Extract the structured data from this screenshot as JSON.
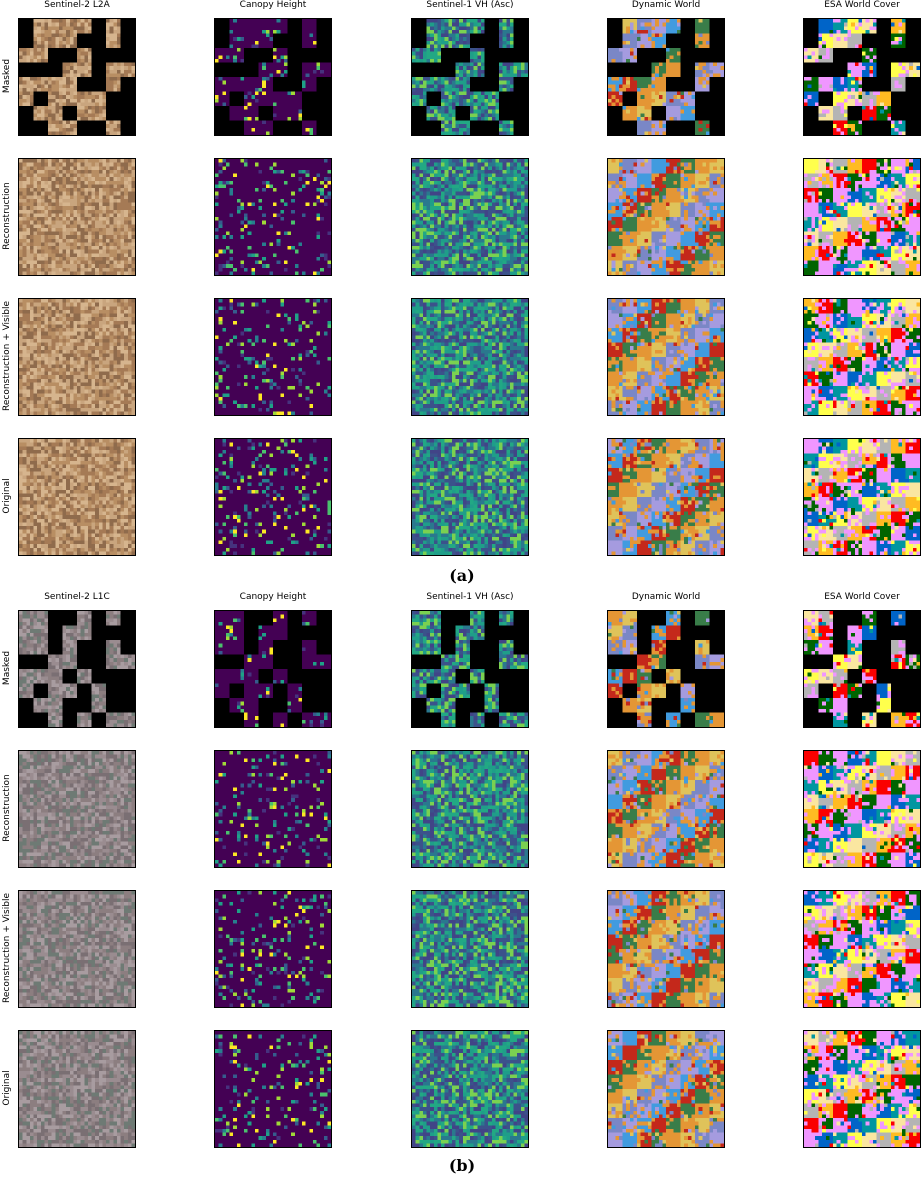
{
  "figure": {
    "panels": [
      {
        "id": "a",
        "caption": "(a)",
        "columns": [
          "Sentinel-2 L2A",
          "Canopy Height",
          "Sentinel-1 VH (Asc)",
          "Dynamic World",
          "ESA World Cover"
        ],
        "rows": [
          "Masked",
          "Reconstruction",
          "Reconstruction + Visible",
          "Original"
        ]
      },
      {
        "id": "b",
        "caption": "(b)",
        "columns": [
          "Sentinel-2 L1C",
          "Canopy Height",
          "Sentinel-1 VH (Asc)",
          "Dynamic World",
          "ESA World Cover"
        ],
        "rows": [
          "Masked",
          "Reconstruction",
          "Reconstruction + Visible",
          "Original"
        ]
      }
    ],
    "palettes": {
      "s2a": [
        "#c9a57e",
        "#b88e63",
        "#a57a55",
        "#8f6b4c",
        "#d6b58e"
      ],
      "s2b": [
        "#8c7e80",
        "#9a8c90",
        "#7a6f73",
        "#a89ca0",
        "#6e7a74"
      ],
      "canopy": [
        "#440154",
        "#46327e",
        "#365c8d",
        "#277f8e",
        "#1fa187",
        "#4ac16d",
        "#a0da39",
        "#fde725"
      ],
      "s1": [
        "#2a788e",
        "#22a884",
        "#3b528b",
        "#7ad151",
        "#414487",
        "#1f9e89"
      ],
      "dw": [
        "#e49635",
        "#c4281b",
        "#a59bdf",
        "#dfc35a",
        "#397d49",
        "#419bdf",
        "#7a87c6"
      ],
      "esa": [
        "#f096ff",
        "#fa0000",
        "#b4b4b4",
        "#ffff4c",
        "#0064c8",
        "#006400",
        "#ffbb22",
        "#fae6a0",
        "#0096a0"
      ]
    }
  }
}
